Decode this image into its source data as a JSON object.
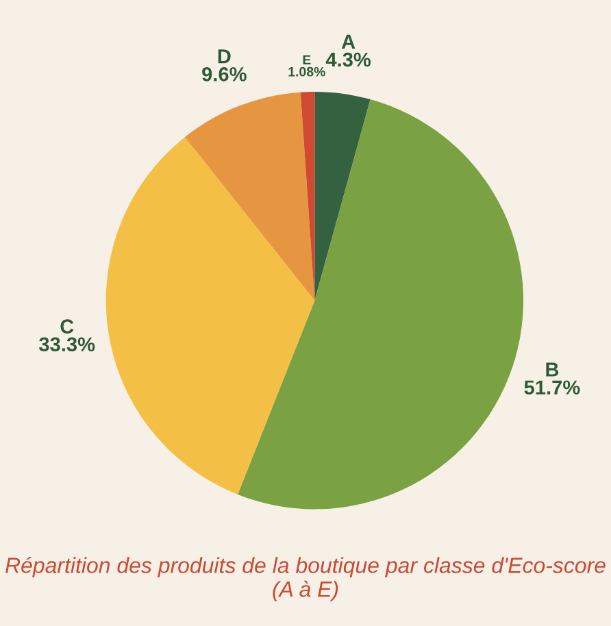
{
  "chart_data": {
    "type": "pie",
    "title": "Répartition des produits de la boutique par classe d'Eco-score (A à E)",
    "categories": [
      "A",
      "B",
      "C",
      "D",
      "E"
    ],
    "values": [
      4.3,
      51.7,
      33.3,
      9.6,
      1.08
    ],
    "value_labels": [
      "4.3%",
      "51.7%",
      "33.3%",
      "9.6%",
      "1.08%"
    ],
    "colors": [
      "#346240",
      "#7aa142",
      "#f4bf45",
      "#e69641",
      "#cf4a30"
    ]
  }
}
